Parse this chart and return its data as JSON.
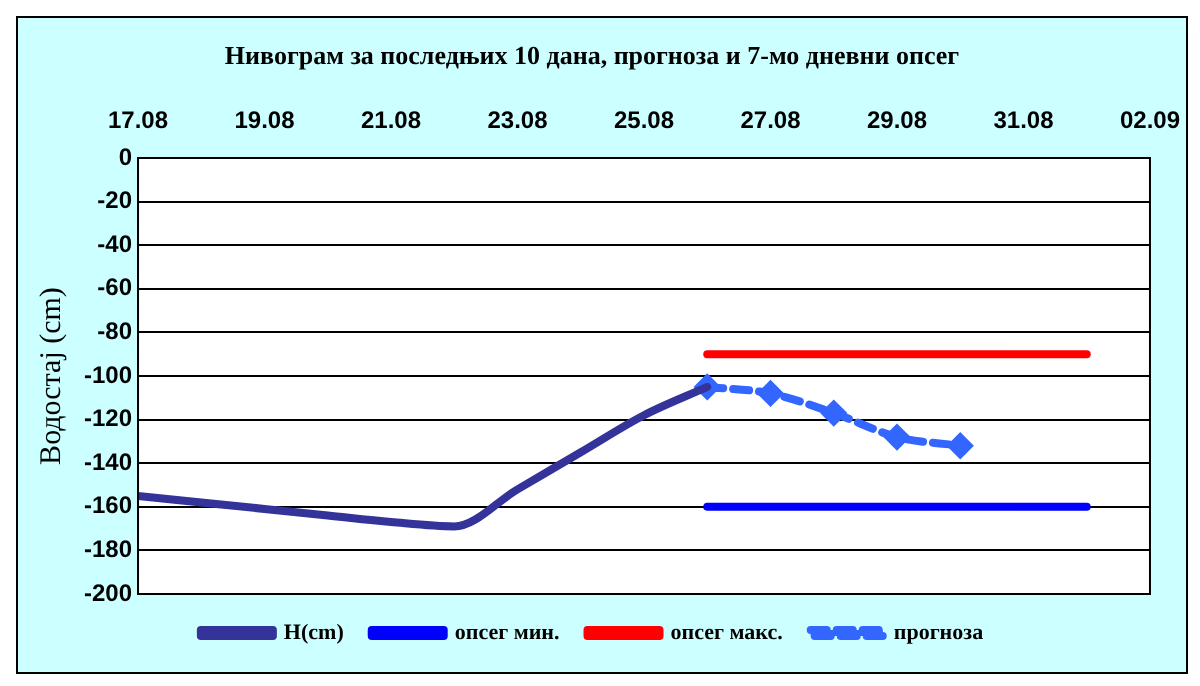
{
  "chart_data": {
    "type": "line",
    "title": "Нивограм за последњих 10 дана, прогноза и 7-мо дневни опсег",
    "ylabel": "Водостај (cm)",
    "xlim": [
      "--08-17",
      "--09-02"
    ],
    "xticks": [
      {
        "value": "--08-17",
        "label": "17.08"
      },
      {
        "value": "--08-19",
        "label": "19.08"
      },
      {
        "value": "--08-21",
        "label": "21.08"
      },
      {
        "value": "--08-23",
        "label": "23.08"
      },
      {
        "value": "--08-25",
        "label": "25.08"
      },
      {
        "value": "--08-27",
        "label": "27.08"
      },
      {
        "value": "--08-29",
        "label": "29.08"
      },
      {
        "value": "--08-31",
        "label": "31.08"
      },
      {
        "value": "--09-02",
        "label": "02.09"
      }
    ],
    "ylim": [
      -200,
      0
    ],
    "yticks": [
      -200,
      -180,
      -160,
      -140,
      -120,
      -100,
      -80,
      -60,
      -40,
      -20,
      0
    ],
    "grid": "y",
    "legend": "bottom",
    "series": [
      {
        "name": "H(cm)",
        "color": "#333399",
        "marker": "none",
        "line_style": "solid",
        "x": [
          "--08-17",
          "--08-18",
          "--08-19",
          "--08-20",
          "--08-21",
          "--08-22",
          "--08-23",
          "--08-24",
          "--08-25",
          "--08-26"
        ],
        "values": [
          -155,
          -158,
          -161,
          -164,
          -167,
          -169,
          -152,
          -135,
          -118,
          -105
        ]
      },
      {
        "name": "опсег мин.",
        "color": "#0000ff",
        "marker": "none",
        "line_style": "solid",
        "x": [
          "--08-26",
          "--09-01"
        ],
        "values": [
          -160,
          -160
        ]
      },
      {
        "name": "опсег макс.",
        "color": "#ff0000",
        "marker": "none",
        "line_style": "solid",
        "x": [
          "--08-26",
          "--09-01"
        ],
        "values": [
          -90,
          -90
        ]
      },
      {
        "name": "прогноза",
        "color": "#3366ff",
        "marker": "diamond",
        "line_style": "dashed",
        "x": [
          "--08-26",
          "--08-27",
          "--08-28",
          "--08-29",
          "--08-30"
        ],
        "values": [
          -105,
          -108,
          -117,
          -128,
          -132
        ]
      }
    ]
  }
}
